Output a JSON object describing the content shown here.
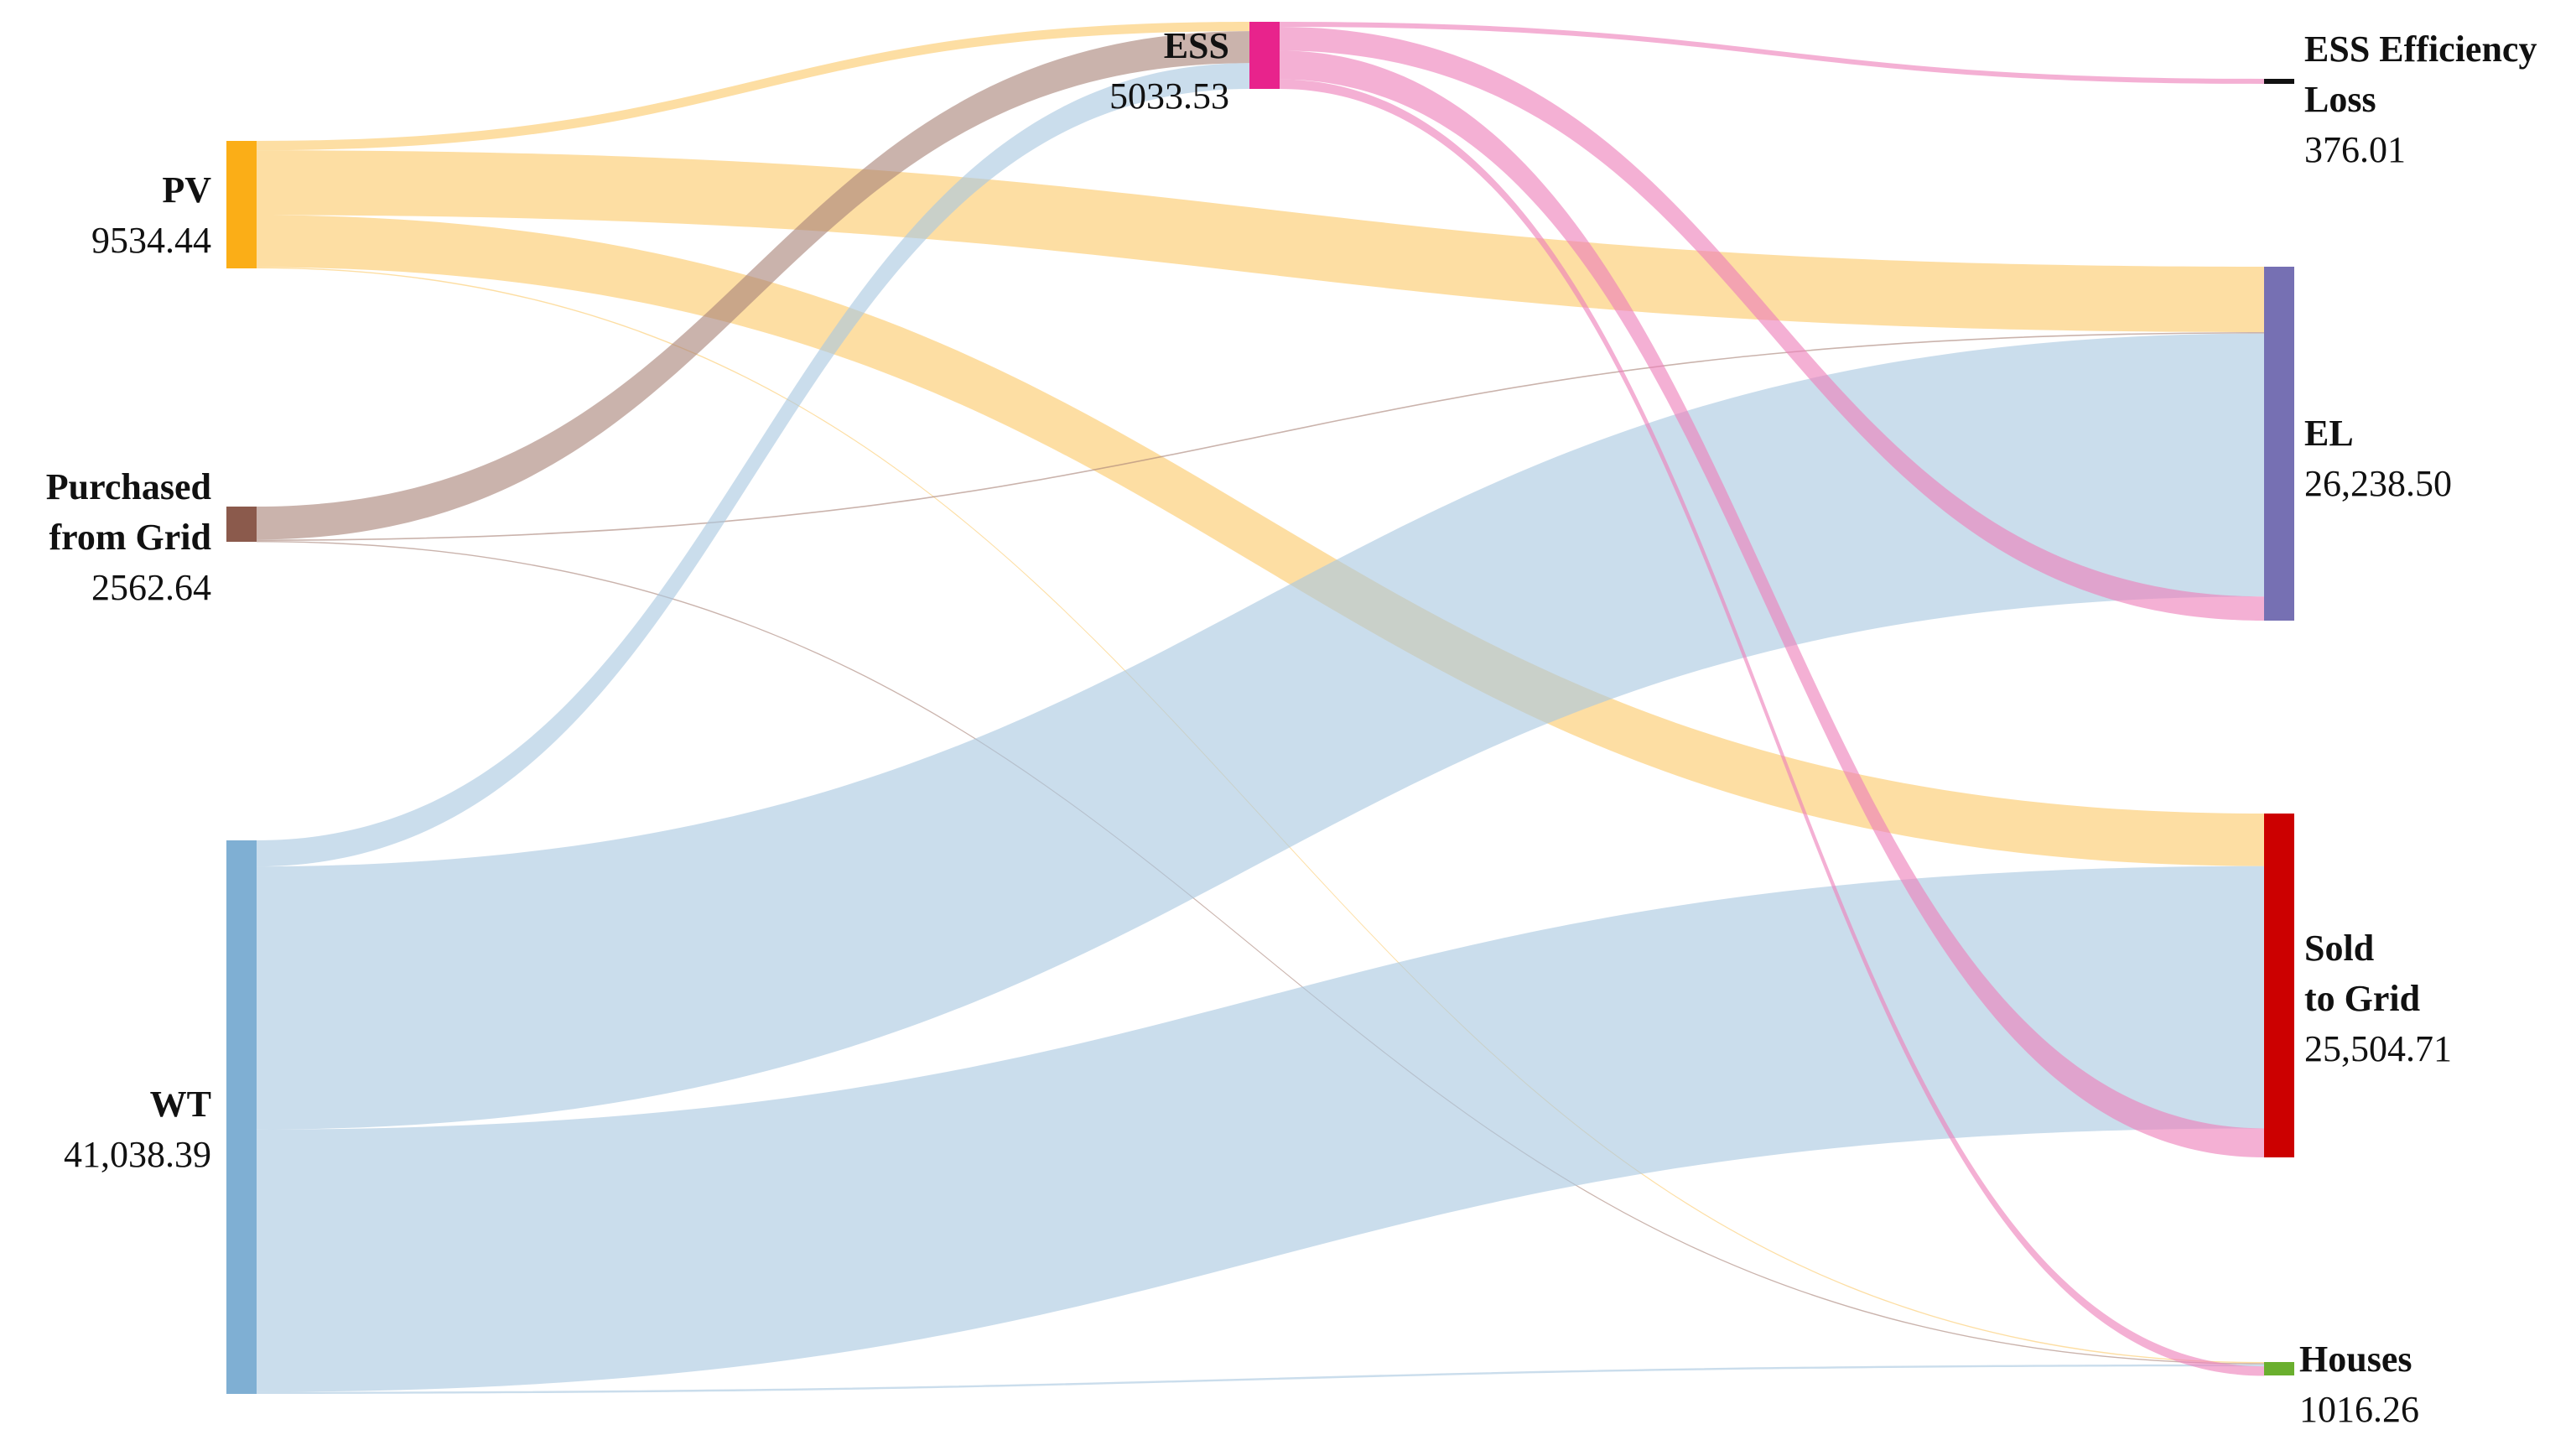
{
  "chart_data": {
    "type": "sankey",
    "units": "",
    "nodes": [
      {
        "id": "PV",
        "name_lines": [
          "PV"
        ],
        "value_label": "9534.44",
        "value": 9534.44,
        "color": "#FBAE17"
      },
      {
        "id": "GRID_IN",
        "name_lines": [
          "Purchased",
          "from Grid"
        ],
        "value_label": "2562.64",
        "value": 2562.64,
        "color": "#8B5A4C"
      },
      {
        "id": "WT",
        "name_lines": [
          "WT"
        ],
        "value_label": "41,038.39",
        "value": 41038.39,
        "color": "#7FAFD3"
      },
      {
        "id": "ESS",
        "name_lines": [
          "ESS"
        ],
        "value_label": "5033.53",
        "value": 5033.53,
        "color": "#E8238C"
      },
      {
        "id": "LOSS",
        "name_lines": [
          "ESS Efficiency",
          "Loss"
        ],
        "value_label": "376.01",
        "value": 376.01,
        "color": "#111111"
      },
      {
        "id": "EL",
        "name_lines": [
          "EL"
        ],
        "value_label": "26,238.50",
        "value": 26238.5,
        "color": "#7670B3"
      },
      {
        "id": "SOLD",
        "name_lines": [
          "Sold",
          "to Grid"
        ],
        "value_label": "25,504.71",
        "value": 25504.71,
        "color": "#CC0000"
      },
      {
        "id": "HOUSES",
        "name_lines": [
          "Houses"
        ],
        "value_label": "1016.26",
        "value": 1016.26,
        "color": "#6AAF2E"
      }
    ],
    "links": [
      {
        "source": "PV",
        "target": "ESS",
        "value": 700,
        "color": "#FBC96A"
      },
      {
        "source": "PV",
        "target": "EL",
        "value": 4850,
        "color": "#FBC96A"
      },
      {
        "source": "PV",
        "target": "SOLD",
        "value": 3900,
        "color": "#FBC96A"
      },
      {
        "source": "PV",
        "target": "HOUSES",
        "value": 84.44,
        "color": "#FBC96A"
      },
      {
        "source": "GRID_IN",
        "target": "ESS",
        "value": 2400,
        "color": "#A98579"
      },
      {
        "source": "GRID_IN",
        "target": "EL",
        "value": 100,
        "color": "#A98579"
      },
      {
        "source": "GRID_IN",
        "target": "HOUSES",
        "value": 62.64,
        "color": "#A98579"
      },
      {
        "source": "WT",
        "target": "ESS",
        "value": 1933.53,
        "color": "#A9C8E0"
      },
      {
        "source": "WT",
        "target": "EL",
        "value": 19500,
        "color": "#A9C8E0"
      },
      {
        "source": "WT",
        "target": "SOLD",
        "value": 19454.86,
        "color": "#A9C8E0"
      },
      {
        "source": "WT",
        "target": "HOUSES",
        "value": 150,
        "color": "#A9C8E0"
      },
      {
        "source": "ESS",
        "target": "LOSS",
        "value": 376.01,
        "color": "#EE7FBA"
      },
      {
        "source": "ESS",
        "target": "EL",
        "value": 1788.5,
        "color": "#EE7FBA"
      },
      {
        "source": "ESS",
        "target": "SOLD",
        "value": 2149.85,
        "color": "#EE7FBA"
      },
      {
        "source": "ESS",
        "target": "HOUSES",
        "value": 719.17,
        "color": "#EE7FBA"
      }
    ]
  }
}
